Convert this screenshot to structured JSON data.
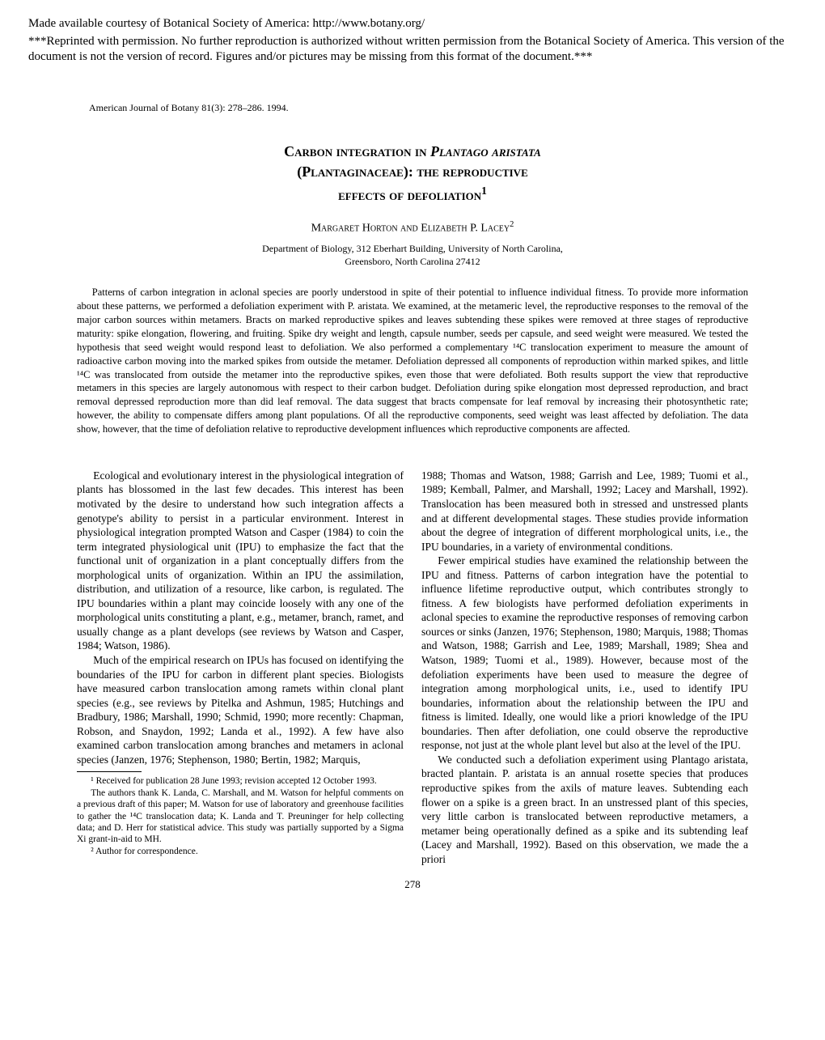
{
  "availability_notice": "Made available courtesy of Botanical Society of America: http://www.botany.org/",
  "reprint_notice": "***Reprinted with permission. No further reproduction is authorized without written permission from the Botanical Society of America. This version of the document is not the version of record. Figures and/or pictures may be missing from this format of the document.***",
  "journal_info": "American Journal of Botany 81(3): 278–286.  1994.",
  "title_line1_prefix": "Carbon integration in ",
  "title_line1_italic": "Plantago aristata",
  "title_line2": "(Plantaginaceae): the reproductive",
  "title_line3": "effects of defoliation",
  "title_superscript": "1",
  "authors": "Margaret Horton and Elizabeth P. Lacey",
  "authors_superscript": "2",
  "affiliation_line1": "Department of Biology, 312 Eberhart Building, University of North Carolina,",
  "affiliation_line2": "Greensboro, North Carolina 27412",
  "abstract": "Patterns of carbon integration in aclonal species are poorly understood in spite of their potential to influence individual fitness. To provide more information about these patterns, we performed a defoliation experiment with P. aristata. We examined, at the metameric level, the reproductive responses to the removal of the major carbon sources within metamers. Bracts on marked reproductive spikes and leaves subtending these spikes were removed at three stages of reproductive maturity: spike elongation, flowering, and fruiting. Spike dry weight and length, capsule number, seeds per capsule, and seed weight were measured. We tested the hypothesis that seed weight would respond least to defoliation. We also performed a complementary ¹⁴C translocation experiment to measure the amount of radioactive carbon moving into the marked spikes from outside the metamer. Defoliation depressed all components of reproduction within marked spikes, and little ¹⁴C was translocated from outside the metamer into the reproductive spikes, even those that were defoliated. Both results support the view that reproductive metamers in this species are largely autonomous with respect to their carbon budget. Defoliation during spike elongation most depressed reproduction, and bract removal depressed reproduction more than did leaf removal. The data suggest that bracts compensate for leaf removal by increasing their photosynthetic rate; however, the ability to compensate differs among plant populations. Of all the reproductive components, seed weight was least affected by defoliation. The data show, however, that the time of defoliation relative to reproductive development influences which reproductive components are affected.",
  "col1_p1": "Ecological and evolutionary interest in the physiological integration of plants has blossomed in the last few decades. This interest has been motivated by the desire to understand how such integration affects a genotype's ability to persist in a particular environment. Interest in physiological integration prompted Watson and Casper (1984) to coin the term integrated physiological unit (IPU) to emphasize the fact that the functional unit of organization in a plant conceptually differs from the morphological units of organization. Within an IPU the assimilation, distribution, and utilization of a resource, like carbon, is regulated. The IPU boundaries within a plant may coincide loosely with any one of the morphological units constituting a plant, e.g., metamer, branch, ramet, and usually change as a plant develops (see reviews by Watson and Casper, 1984; Watson, 1986).",
  "col1_p2": "Much of the empirical research on IPUs has focused on identifying the boundaries of the IPU for carbon in different plant species. Biologists have measured carbon translocation among ramets within clonal plant species (e.g., see reviews by Pitelka and Ashmun, 1985; Hutchings and Bradbury, 1986; Marshall, 1990; Schmid, 1990; more recently: Chapman, Robson, and Snaydon, 1992; Landa et al., 1992). A few have also examined carbon translocation among branches and metamers in aclonal species (Janzen, 1976; Stephenson, 1980; Bertin, 1982; Marquis,",
  "footnote1": "¹ Received for publication 28 June 1993; revision accepted 12 October 1993.",
  "footnote_thanks": "The authors thank K. Landa, C. Marshall, and M. Watson for helpful comments on a previous draft of this paper; M. Watson for use of laboratory and greenhouse facilities to gather the ¹⁴C translocation data; K. Landa and T. Preuninger for help collecting data; and D. Herr for statistical advice. This study was partially supported by a Sigma Xi grant-in-aid to MH.",
  "footnote2": "² Author for correspondence.",
  "col2_p1": "1988; Thomas and Watson, 1988; Garrish and Lee, 1989; Tuomi et al., 1989; Kemball, Palmer, and Marshall, 1992; Lacey and Marshall, 1992). Translocation has been measured both in stressed and unstressed plants and at different developmental stages. These studies provide information about the degree of integration of different morphological units, i.e., the IPU boundaries, in a variety of environmental conditions.",
  "col2_p2": "Fewer empirical studies have examined the relationship between the IPU and fitness. Patterns of carbon integration have the potential to influence lifetime reproductive output, which contributes strongly to fitness. A few biologists have performed defoliation experiments in aclonal species to examine the reproductive responses of removing carbon sources or sinks (Janzen, 1976; Stephenson, 1980; Marquis, 1988; Thomas and Watson, 1988; Garrish and Lee, 1989; Marshall, 1989; Shea and Watson, 1989; Tuomi et al., 1989). However, because most of the defoliation experiments have been used to measure the degree of integration among morphological units, i.e., used to identify IPU boundaries, information about the relationship between the IPU and fitness is limited. Ideally, one would like a priori knowledge of the IPU boundaries. Then after defoliation, one could observe the reproductive response, not just at the whole plant level but also at the level of the IPU.",
  "col2_p3": "We conducted such a defoliation experiment using Plantago aristata, bracted plantain. P. aristata is an annual rosette species that produces reproductive spikes from the axils of mature leaves. Subtending each flower on a spike is a green bract. In an unstressed plant of this species, very little carbon is translocated between reproductive metamers, a metamer being operationally defined as a spike and its subtending leaf (Lacey and Marshall, 1992). Based on this observation, we made the a priori",
  "page_number": "278"
}
